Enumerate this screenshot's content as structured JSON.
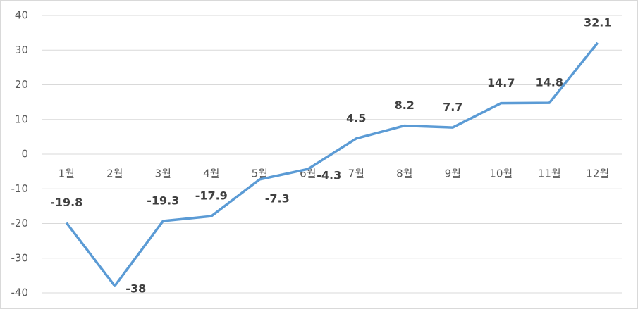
{
  "chart_data": {
    "type": "line",
    "categories": [
      "1월",
      "2월",
      "3월",
      "4월",
      "5월",
      "6월",
      "7월",
      "8월",
      "9월",
      "10월",
      "11월",
      "12월"
    ],
    "series": [
      {
        "color": "#5b9bd5",
        "values": [
          -19.8,
          -38,
          -19.3,
          -17.9,
          -7.3,
          -4.3,
          4.5,
          8.2,
          7.7,
          14.7,
          14.8,
          32.1
        ]
      }
    ],
    "ylim": [
      -40,
      40
    ],
    "yticks": [
      -40,
      -30,
      -20,
      -10,
      0,
      10,
      20,
      30,
      40
    ],
    "grid": true
  }
}
